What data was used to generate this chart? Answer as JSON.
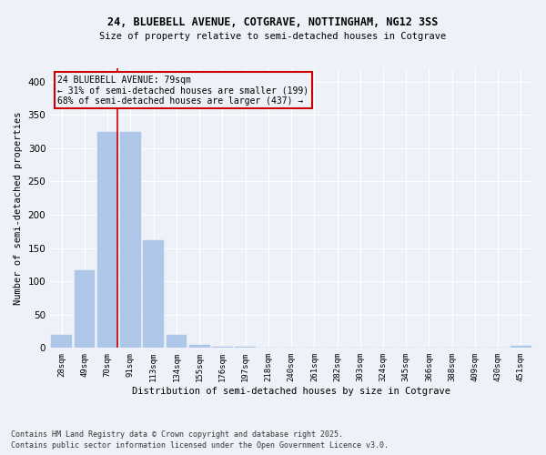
{
  "title_line1": "24, BLUEBELL AVENUE, COTGRAVE, NOTTINGHAM, NG12 3SS",
  "title_line2": "Size of property relative to semi-detached houses in Cotgrave",
  "xlabel": "Distribution of semi-detached houses by size in Cotgrave",
  "ylabel": "Number of semi-detached properties",
  "categories": [
    "28sqm",
    "49sqm",
    "70sqm",
    "91sqm",
    "113sqm",
    "134sqm",
    "155sqm",
    "176sqm",
    "197sqm",
    "218sqm",
    "240sqm",
    "261sqm",
    "282sqm",
    "303sqm",
    "324sqm",
    "345sqm",
    "366sqm",
    "388sqm",
    "409sqm",
    "430sqm",
    "451sqm"
  ],
  "values": [
    20,
    116,
    325,
    325,
    162,
    20,
    5,
    2,
    2,
    0,
    0,
    0,
    0,
    0,
    0,
    0,
    0,
    0,
    0,
    0,
    3
  ],
  "bar_color": "#aec6e8",
  "vline_color": "#cc0000",
  "annotation_title": "24 BLUEBELL AVENUE: 79sqm",
  "annotation_line2": "← 31% of semi-detached houses are smaller (199)",
  "annotation_line3": "68% of semi-detached houses are larger (437) →",
  "annotation_box_color": "#cc0000",
  "ylim": [
    0,
    420
  ],
  "yticks": [
    0,
    50,
    100,
    150,
    200,
    250,
    300,
    350,
    400
  ],
  "bg_color": "#eef2f8",
  "footnote1": "Contains HM Land Registry data © Crown copyright and database right 2025.",
  "footnote2": "Contains public sector information licensed under the Open Government Licence v3.0."
}
